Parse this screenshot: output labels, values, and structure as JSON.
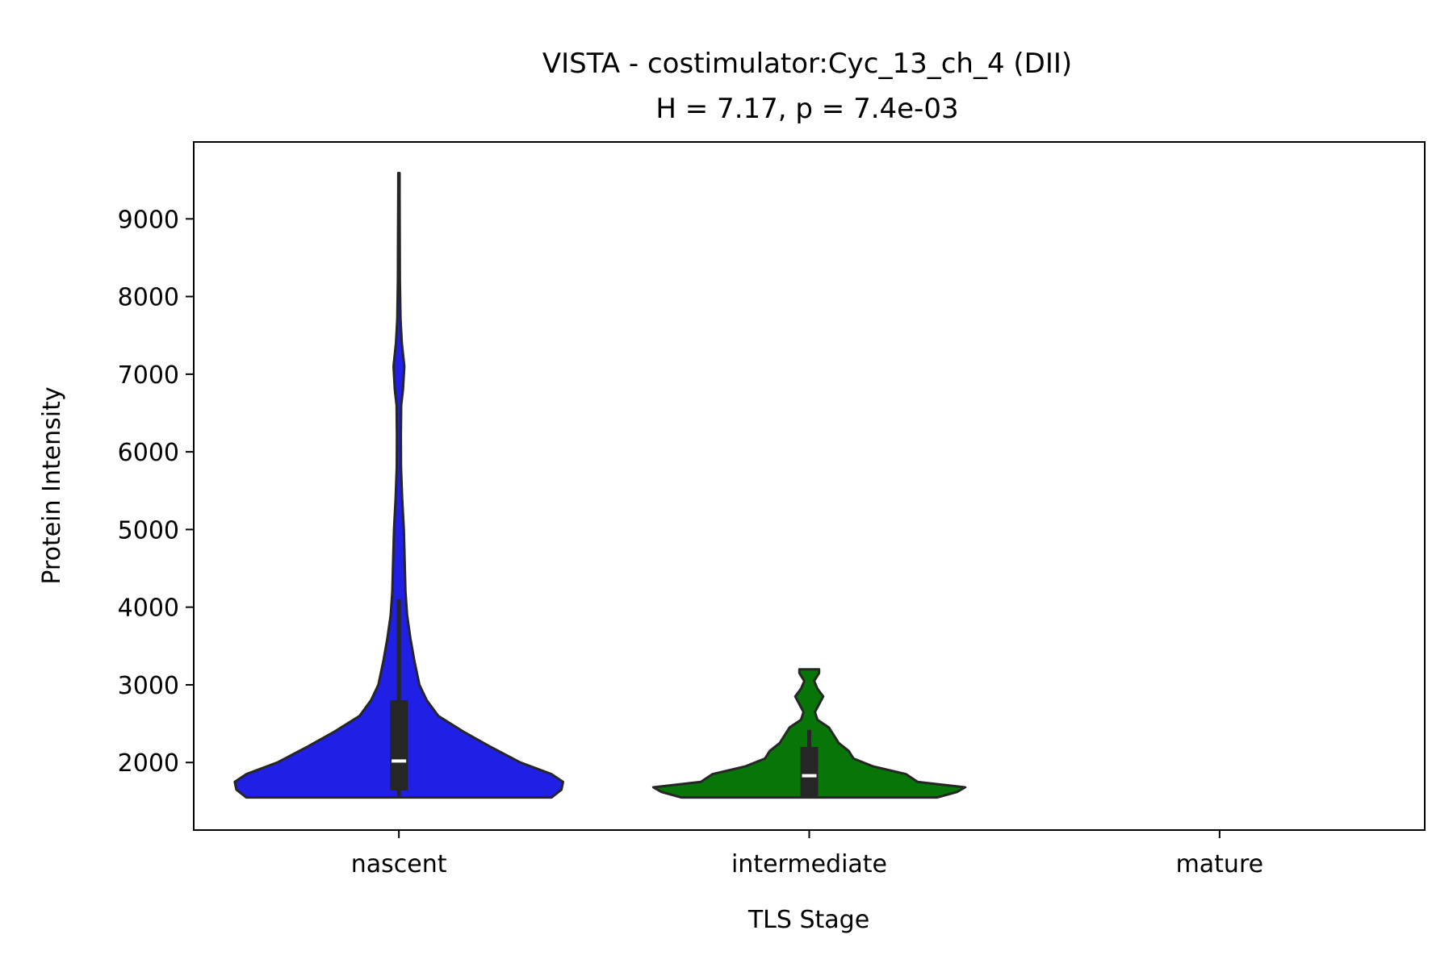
{
  "chart_data": {
    "type": "violin",
    "title": "VISTA - costimulator:Cyc_13_ch_4 (DII)",
    "subtitle": "H = 7.17, p = 7.4e-03",
    "xlabel": "TLS Stage",
    "ylabel": "Protein Intensity",
    "categories": [
      "nascent",
      "intermediate",
      "mature"
    ],
    "y_ticks": [
      "2000",
      "3000",
      "4000",
      "5000",
      "6000",
      "7000",
      "8000",
      "9000"
    ],
    "ylim": [
      1130,
      9990
    ],
    "grid": false,
    "legend": "none",
    "colors": {
      "nascent": "#1f1fe6",
      "intermediate": "#087508",
      "box": "#262626",
      "median": "#ffffff"
    },
    "series": [
      {
        "category": "nascent",
        "color": "#1f1fe6",
        "min": 1550,
        "max": 9590,
        "q1": 1640,
        "median": 2020,
        "q3": 2800,
        "whisker_low": 1550,
        "whisker_high": 4100,
        "density": [
          [
            1550,
            0.93
          ],
          [
            1650,
            0.99
          ],
          [
            1750,
            1.0
          ],
          [
            1850,
            0.93
          ],
          [
            2000,
            0.74
          ],
          [
            2200,
            0.56
          ],
          [
            2400,
            0.39
          ],
          [
            2600,
            0.24
          ],
          [
            2800,
            0.17
          ],
          [
            3000,
            0.125
          ],
          [
            3300,
            0.095
          ],
          [
            3600,
            0.07
          ],
          [
            3900,
            0.05
          ],
          [
            4200,
            0.04
          ],
          [
            4600,
            0.035
          ],
          [
            5000,
            0.03
          ],
          [
            5400,
            0.02
          ],
          [
            5800,
            0.013
          ],
          [
            6200,
            0.012
          ],
          [
            6600,
            0.014
          ],
          [
            6800,
            0.025
          ],
          [
            7100,
            0.033
          ],
          [
            7400,
            0.018
          ],
          [
            7700,
            0.01
          ],
          [
            8200,
            0.006
          ],
          [
            8800,
            0.005
          ],
          [
            9400,
            0.004
          ],
          [
            9590,
            0.004
          ]
        ]
      },
      {
        "category": "intermediate",
        "color": "#087508",
        "min": 1550,
        "max": 3200,
        "q1": 1560,
        "median": 1830,
        "q3": 2200,
        "whisker_low": 1550,
        "whisker_high": 2420,
        "density": [
          [
            1550,
            0.78
          ],
          [
            1620,
            0.9
          ],
          [
            1680,
            0.95
          ],
          [
            1750,
            0.66
          ],
          [
            1850,
            0.59
          ],
          [
            1950,
            0.39
          ],
          [
            2050,
            0.27
          ],
          [
            2150,
            0.24
          ],
          [
            2250,
            0.18
          ],
          [
            2350,
            0.15
          ],
          [
            2450,
            0.12
          ],
          [
            2550,
            0.05
          ],
          [
            2650,
            0.035
          ],
          [
            2750,
            0.06
          ],
          [
            2850,
            0.085
          ],
          [
            2950,
            0.05
          ],
          [
            3050,
            0.03
          ],
          [
            3150,
            0.06
          ],
          [
            3200,
            0.06
          ]
        ]
      }
    ]
  }
}
